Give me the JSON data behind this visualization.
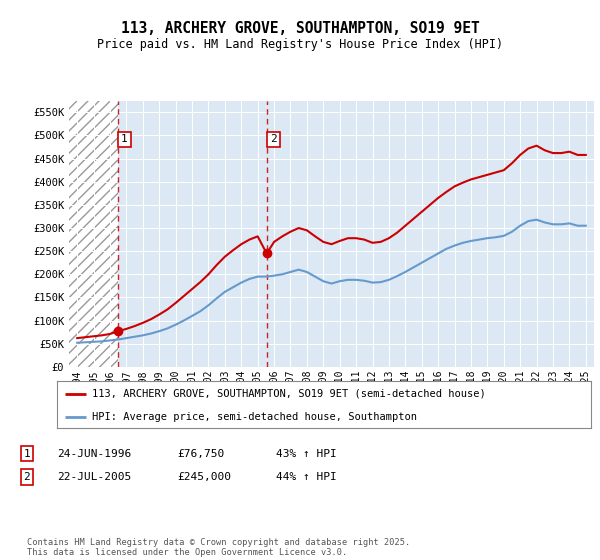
{
  "title": "113, ARCHERY GROVE, SOUTHAMPTON, SO19 9ET",
  "subtitle": "Price paid vs. HM Land Registry's House Price Index (HPI)",
  "legend_line1": "113, ARCHERY GROVE, SOUTHAMPTON, SO19 9ET (semi-detached house)",
  "legend_line2": "HPI: Average price, semi-detached house, Southampton",
  "footer": "Contains HM Land Registry data © Crown copyright and database right 2025.\nThis data is licensed under the Open Government Licence v3.0.",
  "purchase1_date": "24-JUN-1996",
  "purchase1_price": 76750,
  "purchase1_price_str": "£76,750",
  "purchase1_hpi": "43% ↑ HPI",
  "purchase2_date": "22-JUL-2005",
  "purchase2_price": 245000,
  "purchase2_price_str": "£245,000",
  "purchase2_hpi": "44% ↑ HPI",
  "purchase1_year": 1996.48,
  "purchase2_year": 2005.55,
  "hatch_end_year": 1996.48,
  "bg_color": "#dce9f5",
  "red_color": "#cc0000",
  "blue_color": "#6699cc",
  "ylim": [
    0,
    575000
  ],
  "xlim": [
    1993.5,
    2025.5
  ],
  "yticks": [
    0,
    50000,
    100000,
    150000,
    200000,
    250000,
    300000,
    350000,
    400000,
    450000,
    500000,
    550000
  ],
  "ytick_labels": [
    "£0",
    "£50K",
    "£100K",
    "£150K",
    "£200K",
    "£250K",
    "£300K",
    "£350K",
    "£400K",
    "£450K",
    "£500K",
    "£550K"
  ],
  "hpi_years": [
    1994,
    1994.5,
    1995,
    1995.5,
    1996,
    1996.5,
    1997,
    1997.5,
    1998,
    1998.5,
    1999,
    1999.5,
    2000,
    2000.5,
    2001,
    2001.5,
    2002,
    2002.5,
    2003,
    2003.5,
    2004,
    2004.5,
    2005,
    2005.5,
    2006,
    2006.5,
    2007,
    2007.5,
    2008,
    2008.5,
    2009,
    2009.5,
    2010,
    2010.5,
    2011,
    2011.5,
    2012,
    2012.5,
    2013,
    2013.5,
    2014,
    2014.5,
    2015,
    2015.5,
    2016,
    2016.5,
    2017,
    2017.5,
    2018,
    2018.5,
    2019,
    2019.5,
    2020,
    2020.5,
    2021,
    2021.5,
    2022,
    2022.5,
    2023,
    2023.5,
    2024,
    2024.5,
    2025
  ],
  "hpi_values": [
    52000,
    53000,
    54000,
    55000,
    57000,
    59000,
    62000,
    65000,
    68000,
    72000,
    77000,
    83000,
    91000,
    100000,
    110000,
    120000,
    133000,
    148000,
    162000,
    172000,
    182000,
    190000,
    195000,
    195000,
    197000,
    200000,
    205000,
    210000,
    205000,
    195000,
    185000,
    180000,
    185000,
    188000,
    188000,
    186000,
    182000,
    183000,
    188000,
    196000,
    205000,
    215000,
    225000,
    235000,
    245000,
    255000,
    262000,
    268000,
    272000,
    275000,
    278000,
    280000,
    283000,
    292000,
    305000,
    315000,
    318000,
    312000,
    308000,
    308000,
    310000,
    305000,
    305000
  ],
  "red_years": [
    1994,
    1994.5,
    1995,
    1995.5,
    1996,
    1996.48,
    1997,
    1997.5,
    1998,
    1998.5,
    1999,
    1999.5,
    2000,
    2000.5,
    2001,
    2001.5,
    2002,
    2002.5,
    2003,
    2003.5,
    2004,
    2004.5,
    2005,
    2005.55,
    2006,
    2006.5,
    2007,
    2007.5,
    2008,
    2008.5,
    2009,
    2009.5,
    2010,
    2010.5,
    2011,
    2011.5,
    2012,
    2012.5,
    2013,
    2013.5,
    2014,
    2014.5,
    2015,
    2015.5,
    2016,
    2016.5,
    2017,
    2017.5,
    2018,
    2018.5,
    2019,
    2019.5,
    2020,
    2020.5,
    2021,
    2021.5,
    2022,
    2022.5,
    2023,
    2023.5,
    2024,
    2024.5,
    2025
  ],
  "red_values": [
    62000,
    64000,
    66000,
    68000,
    71000,
    76750,
    82000,
    88000,
    95000,
    103000,
    113000,
    124000,
    138000,
    153000,
    168000,
    183000,
    200000,
    220000,
    238000,
    252000,
    265000,
    275000,
    282000,
    245000,
    270000,
    282000,
    292000,
    300000,
    295000,
    282000,
    270000,
    265000,
    272000,
    278000,
    278000,
    275000,
    268000,
    270000,
    278000,
    290000,
    305000,
    320000,
    335000,
    350000,
    365000,
    378000,
    390000,
    398000,
    405000,
    410000,
    415000,
    420000,
    425000,
    440000,
    458000,
    472000,
    478000,
    468000,
    462000,
    462000,
    465000,
    458000,
    458000
  ]
}
